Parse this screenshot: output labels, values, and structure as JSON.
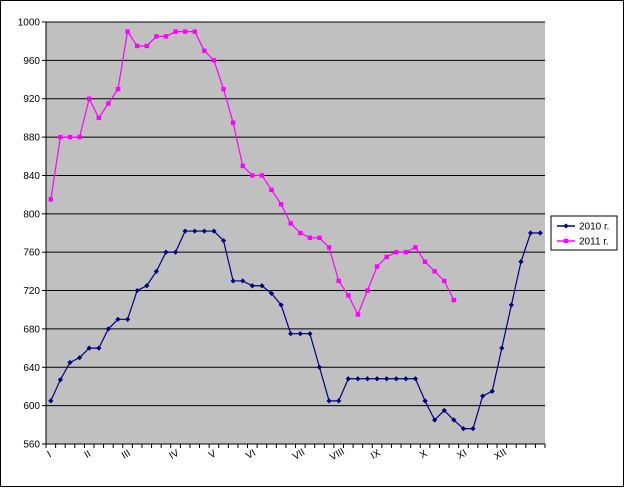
{
  "chart_data": {
    "type": "line",
    "title": "",
    "xlabel": "",
    "ylabel": "",
    "ylim": [
      560,
      1000
    ],
    "yticks": [
      560,
      600,
      640,
      680,
      720,
      760,
      800,
      840,
      880,
      920,
      960,
      1000
    ],
    "month_labels": [
      "I",
      "II",
      "III",
      "IV",
      "V",
      "VI",
      "VII",
      "VIII",
      "IX",
      "X",
      "XI",
      "XII"
    ],
    "month_label_positions": [
      0,
      4,
      8,
      13,
      17,
      21,
      26,
      30,
      34,
      39,
      43,
      47
    ],
    "x_count": 52,
    "grid": true,
    "legend": "right",
    "colors": {
      "plot_bg": "#c0c0c0",
      "grid": "#000000"
    },
    "series": [
      {
        "name": "2010 г.",
        "color": "#000080",
        "marker": "diamond",
        "values": [
          605,
          627,
          645,
          650,
          660,
          660,
          680,
          690,
          690,
          720,
          725,
          740,
          760,
          760,
          782,
          782,
          782,
          782,
          772,
          730,
          730,
          725,
          725,
          717,
          705,
          675,
          675,
          675,
          640,
          605,
          605,
          628,
          628,
          628,
          628,
          628,
          628,
          628,
          628,
          605,
          585,
          595,
          585,
          576,
          576,
          610,
          615,
          660,
          705,
          750,
          780,
          780
        ]
      },
      {
        "name": "2011 г.",
        "color": "#ff00ff",
        "marker": "square",
        "values": [
          815,
          880,
          880,
          880,
          920,
          900,
          915,
          930,
          990,
          975,
          975,
          985,
          985,
          990,
          990,
          990,
          970,
          960,
          930,
          895,
          850,
          840,
          840,
          825,
          810,
          790,
          780,
          775,
          775,
          765,
          730,
          715,
          695,
          720,
          745,
          755,
          760,
          760,
          765,
          750,
          740,
          730,
          710
        ]
      }
    ]
  }
}
